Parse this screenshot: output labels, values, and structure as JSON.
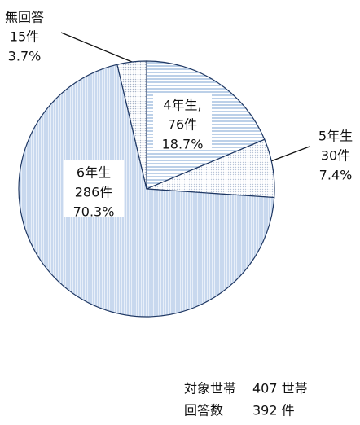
{
  "chart_data": {
    "type": "pie",
    "categories": [
      "4年生,",
      "5年生",
      "6年生",
      "無回答"
    ],
    "values": [
      18.7,
      7.4,
      70.3,
      3.7
    ],
    "value_labels": [
      "18.7%",
      "7.4%",
      "70.3%",
      "3.7%"
    ],
    "counts": [
      76,
      30,
      286,
      15
    ],
    "count_labels": [
      "76件",
      "30件",
      "286件",
      "15件"
    ],
    "colors": [
      "#8fb0d8",
      "#b8c4d8",
      "#a9c2e4",
      "#a8b4c8"
    ],
    "summary": [
      [
        "対象世帯",
        "407 世帯"
      ],
      [
        "回答数",
        "392 件"
      ]
    ]
  }
}
